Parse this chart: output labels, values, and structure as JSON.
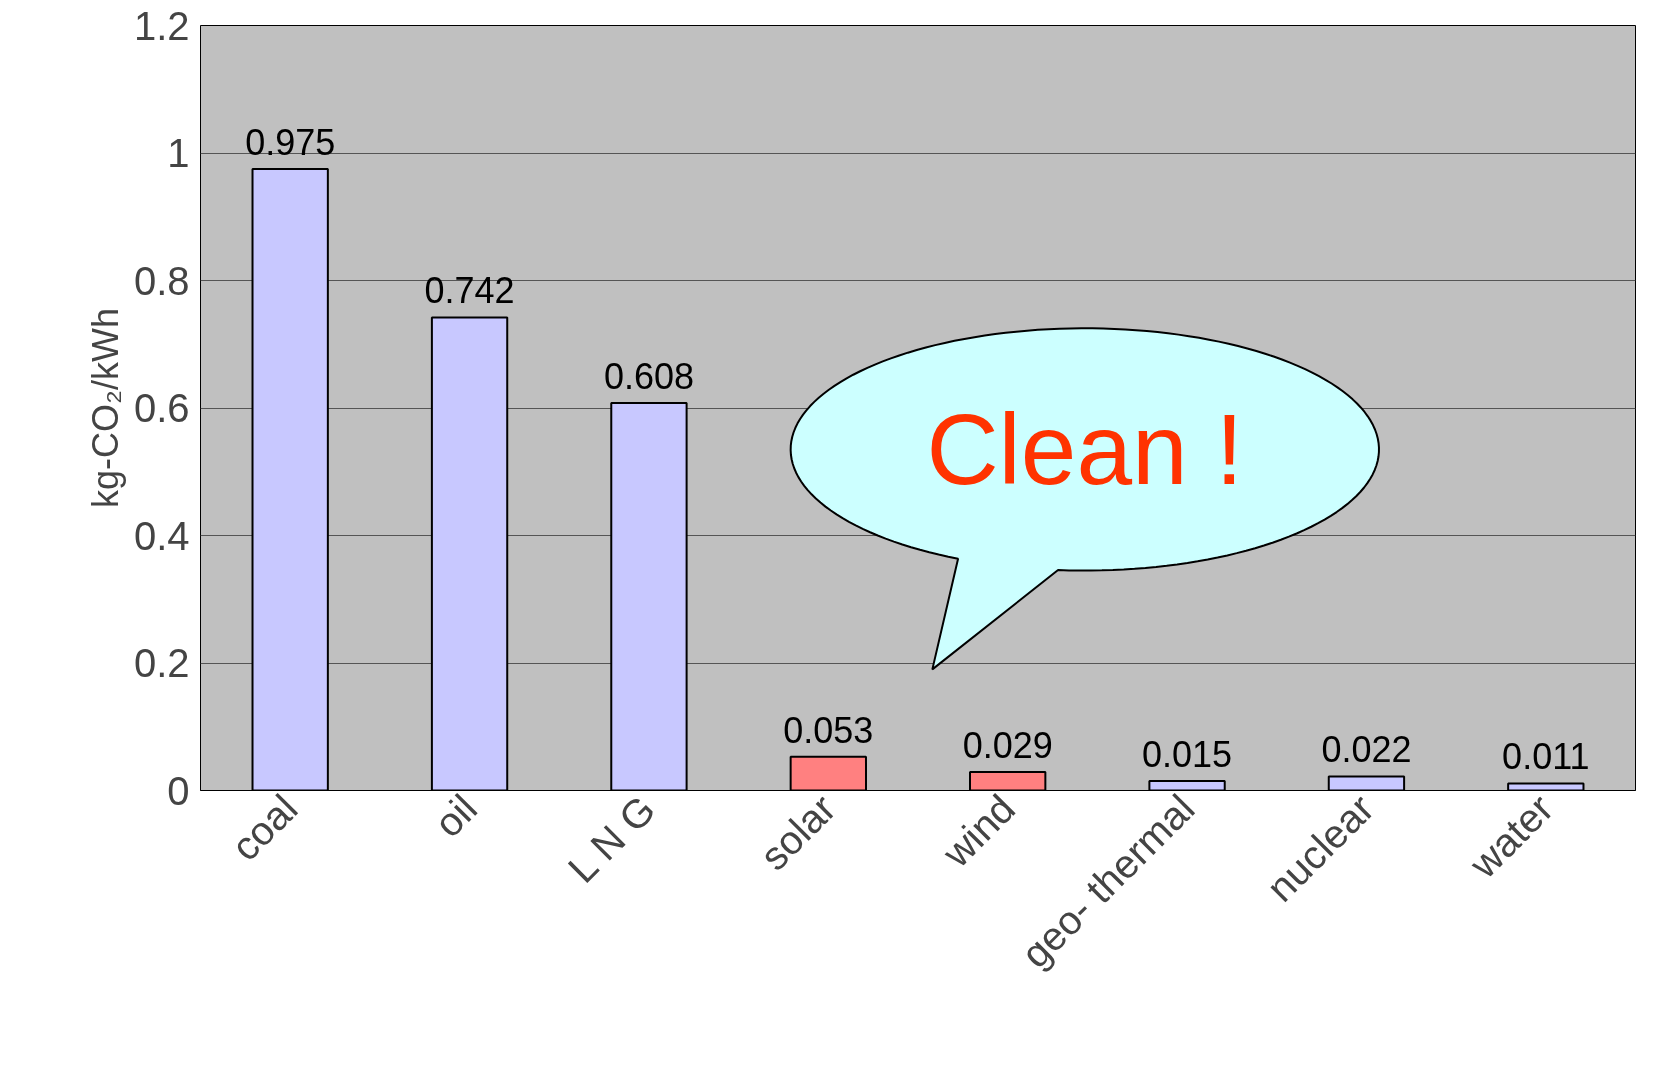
{
  "chart_data": {
    "type": "bar",
    "ylabel": "kg-CO₂/kWh",
    "categories": [
      "coal",
      "oil",
      "L N G",
      "solar",
      "wind",
      "geo- thermal",
      "nuclear",
      "water"
    ],
    "values": [
      0.975,
      0.742,
      0.608,
      0.053,
      0.029,
      0.015,
      0.022,
      0.011
    ],
    "colors": [
      "#c8c8ff",
      "#c8c8ff",
      "#c8c8ff",
      "#ff8080",
      "#ff8080",
      "#c8c8ff",
      "#c8c8ff",
      "#c8c8ff"
    ],
    "ylim": [
      0,
      1.2
    ],
    "yticks": [
      0,
      0.2,
      0.4,
      0.6,
      0.8,
      1,
      1.2
    ],
    "grid": "y",
    "data_labels": true,
    "annotations": [
      "Clean !"
    ]
  }
}
